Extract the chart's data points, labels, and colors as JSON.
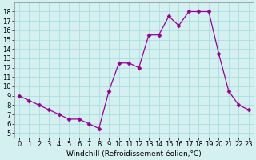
{
  "x": [
    0,
    1,
    2,
    3,
    4,
    5,
    6,
    7,
    8,
    9,
    10,
    11,
    12,
    13,
    14,
    15,
    16,
    17,
    18,
    19,
    20,
    21,
    22,
    23
  ],
  "y": [
    9,
    8.5,
    8,
    7.5,
    7,
    6.5,
    6.5,
    6,
    5.5,
    9.5,
    12.5,
    12.5,
    12,
    15.5,
    15.5,
    17.5,
    16.5,
    18,
    18,
    18,
    13.5,
    9.5,
    8,
    7.5
  ],
  "line_color": "#990099",
  "marker": "D",
  "marker_size": 2.5,
  "bg_color": "#d4f0f0",
  "grid_color": "#aadddd",
  "xlabel": "Windchill (Refroidissement éolien,°C)",
  "xlabel_fontsize": 6.5,
  "tick_fontsize": 6,
  "ylim": [
    4.5,
    19
  ],
  "xlim": [
    -0.5,
    23.5
  ],
  "yticks": [
    5,
    6,
    7,
    8,
    9,
    10,
    11,
    12,
    13,
    14,
    15,
    16,
    17,
    18
  ],
  "xticks": [
    0,
    1,
    2,
    3,
    4,
    5,
    6,
    7,
    8,
    9,
    10,
    11,
    12,
    13,
    14,
    15,
    16,
    17,
    18,
    19,
    20,
    21,
    22,
    23
  ]
}
